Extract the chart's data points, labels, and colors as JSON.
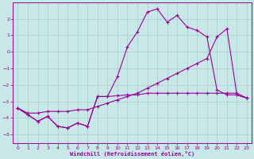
{
  "bg_color": "#c8e8e8",
  "line_color": "#990099",
  "grid_color": "#aacccc",
  "xlabel": "Windchill (Refroidissement éolien,°C)",
  "xlim": [
    -0.5,
    23.5
  ],
  "ylim": [
    -5.5,
    3.0
  ],
  "xticks": [
    0,
    1,
    2,
    3,
    4,
    5,
    6,
    7,
    8,
    9,
    10,
    11,
    12,
    13,
    14,
    15,
    16,
    17,
    18,
    19,
    20,
    21,
    22,
    23
  ],
  "yticks": [
    -5,
    -4,
    -3,
    -2,
    -1,
    0,
    1,
    2
  ],
  "line_jagged_x": [
    0,
    1,
    2,
    3,
    4,
    5,
    6,
    7,
    8,
    9,
    10,
    11,
    12,
    13,
    14,
    15,
    16,
    17,
    18,
    19,
    20,
    21,
    22,
    23
  ],
  "line_jagged_y": [
    -3.4,
    -3.8,
    -4.2,
    -3.9,
    -4.5,
    -4.6,
    -4.3,
    -4.5,
    -2.7,
    -2.7,
    -2.65,
    -2.6,
    -2.6,
    -2.5,
    -2.5,
    -2.5,
    -2.5,
    -2.5,
    -2.5,
    -2.5,
    -2.5,
    -2.5,
    -2.5,
    -2.8
  ],
  "line_peak_x": [
    0,
    1,
    2,
    3,
    4,
    5,
    6,
    7,
    8,
    9,
    10,
    11,
    12,
    13,
    14,
    15,
    16,
    17,
    18,
    19,
    20,
    21,
    22,
    23
  ],
  "line_peak_y": [
    -3.4,
    -3.8,
    -4.2,
    -3.9,
    -4.5,
    -4.6,
    -4.3,
    -4.5,
    -2.7,
    -2.7,
    -1.5,
    0.3,
    1.2,
    2.4,
    2.6,
    1.8,
    2.2,
    1.5,
    1.3,
    0.9,
    -2.3,
    -2.6,
    -2.6,
    -2.8
  ],
  "line_diag_x": [
    0,
    1,
    2,
    3,
    4,
    5,
    6,
    7,
    8,
    9,
    10,
    11,
    12,
    13,
    14,
    15,
    16,
    17,
    18,
    19,
    20,
    21,
    22,
    23
  ],
  "line_diag_y": [
    -3.4,
    -3.7,
    -3.7,
    -3.6,
    -3.6,
    -3.6,
    -3.5,
    -3.5,
    -3.3,
    -3.1,
    -2.9,
    -2.7,
    -2.5,
    -2.2,
    -1.9,
    -1.6,
    -1.3,
    -1.0,
    -0.7,
    -0.4,
    0.9,
    1.4,
    -2.6,
    -2.8
  ],
  "marker": "+"
}
